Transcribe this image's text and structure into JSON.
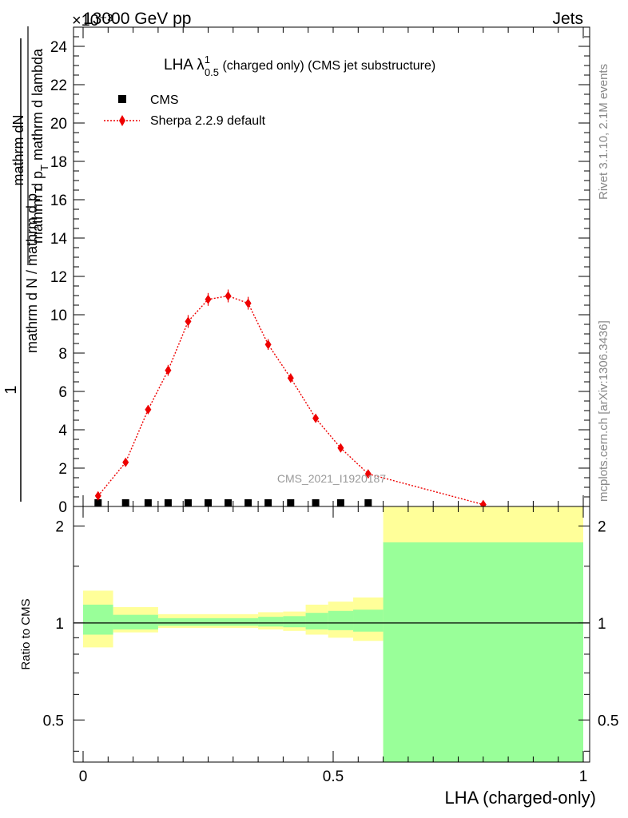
{
  "header": {
    "left": "13000 GeV pp",
    "right": "Jets",
    "exponent": "×10⁻³"
  },
  "side_labels": {
    "rivet": "Rivet 3.1.10,  2.1M events",
    "mcplots": "mcplots.cern.ch [arXiv:1306.3436]"
  },
  "watermark": "CMS_2021_I1920187",
  "colors": {
    "sherpa": "#ee0000",
    "band_yellow": "#ffff99",
    "band_green": "#99ff99",
    "cms": "#000000"
  },
  "chart_data": [
    {
      "type": "line",
      "title_main": "LHA λ",
      "title_sup": "1",
      "title_sub": "0.5",
      "title_rest": " (charged only) (CMS jet substructure)",
      "ylabel_num": "mathrm dN",
      "ylabel_den": "mathrm d p",
      "ylabel_den_sub": "T",
      "ylabel_den_rest": " mathrm d lambda",
      "ylabel_outer_num": "1",
      "ylabel_outer_den": "mathrm d N / mathrm d p",
      "ylabel_outer_den_sub": "T",
      "xlim": [
        0,
        1
      ],
      "ylim": [
        0,
        25
      ],
      "y_ticks": [
        0,
        2,
        4,
        6,
        8,
        10,
        12,
        14,
        16,
        18,
        20,
        22,
        24
      ],
      "y_tick_labels": [
        "0",
        "2",
        "4",
        "6",
        "8",
        "10",
        "12",
        "14",
        "16",
        "18",
        "20",
        "22",
        "24"
      ],
      "legend": {
        "position": "top-left",
        "cms": "CMS",
        "sherpa": "Sherpa 2.2.9 default"
      },
      "series": [
        {
          "name": "CMS",
          "x": [
            0.03,
            0.085,
            0.13,
            0.17,
            0.21,
            0.25,
            0.29,
            0.33,
            0.37,
            0.415,
            0.465,
            0.515,
            0.57
          ],
          "y": [
            0.05,
            0.05,
            0.05,
            0.05,
            0.05,
            0.05,
            0.05,
            0.05,
            0.05,
            0.05,
            0.05,
            0.05,
            0.05
          ]
        },
        {
          "name": "Sherpa 2.2.9 default",
          "x": [
            0.03,
            0.085,
            0.13,
            0.17,
            0.21,
            0.25,
            0.29,
            0.33,
            0.37,
            0.415,
            0.465,
            0.515,
            0.57,
            0.8
          ],
          "y": [
            0.55,
            2.3,
            5.05,
            7.1,
            9.65,
            10.8,
            10.98,
            10.6,
            8.45,
            6.7,
            4.6,
            3.05,
            1.7,
            0.1
          ],
          "yerr": [
            0.05,
            0.1,
            0.15,
            0.2,
            0.25,
            0.25,
            0.25,
            0.25,
            0.2,
            0.15,
            0.1,
            0.1,
            0.08,
            0.02
          ]
        }
      ]
    },
    {
      "type": "area",
      "ylabel": "Ratio to CMS",
      "xlabel": "LHA (charged-only)",
      "xlim": [
        0,
        1
      ],
      "ylim": [
        0.37,
        2.3
      ],
      "log_y": true,
      "x_ticks": [
        0,
        0.5,
        1
      ],
      "x_tick_labels": [
        "0",
        "0.5",
        "1"
      ],
      "y_ticks": [
        0.5,
        1,
        2
      ],
      "y_tick_labels": [
        "0.5",
        "1",
        "2"
      ],
      "bins": [
        {
          "x0": 0.0,
          "x1": 0.06,
          "yellow": [
            0.84,
            1.26
          ],
          "green": [
            0.92,
            1.14
          ]
        },
        {
          "x0": 0.06,
          "x1": 0.15,
          "yellow": [
            0.935,
            1.12
          ],
          "green": [
            0.955,
            1.06
          ]
        },
        {
          "x0": 0.15,
          "x1": 0.35,
          "yellow": [
            0.965,
            1.065
          ],
          "green": [
            0.98,
            1.035
          ]
        },
        {
          "x0": 0.35,
          "x1": 0.4,
          "yellow": [
            0.955,
            1.08
          ],
          "green": [
            0.975,
            1.045
          ]
        },
        {
          "x0": 0.4,
          "x1": 0.445,
          "yellow": [
            0.945,
            1.085
          ],
          "green": [
            0.97,
            1.05
          ]
        },
        {
          "x0": 0.445,
          "x1": 0.49,
          "yellow": [
            0.92,
            1.14
          ],
          "green": [
            0.955,
            1.075
          ]
        },
        {
          "x0": 0.49,
          "x1": 0.54,
          "yellow": [
            0.9,
            1.165
          ],
          "green": [
            0.95,
            1.09
          ]
        },
        {
          "x0": 0.54,
          "x1": 0.6,
          "yellow": [
            0.88,
            1.2
          ],
          "green": [
            0.94,
            1.1
          ]
        },
        {
          "x0": 0.6,
          "x1": 1.0,
          "yellow": [
            0.37,
            2.3
          ],
          "green": [
            0.37,
            1.78
          ]
        }
      ]
    }
  ]
}
